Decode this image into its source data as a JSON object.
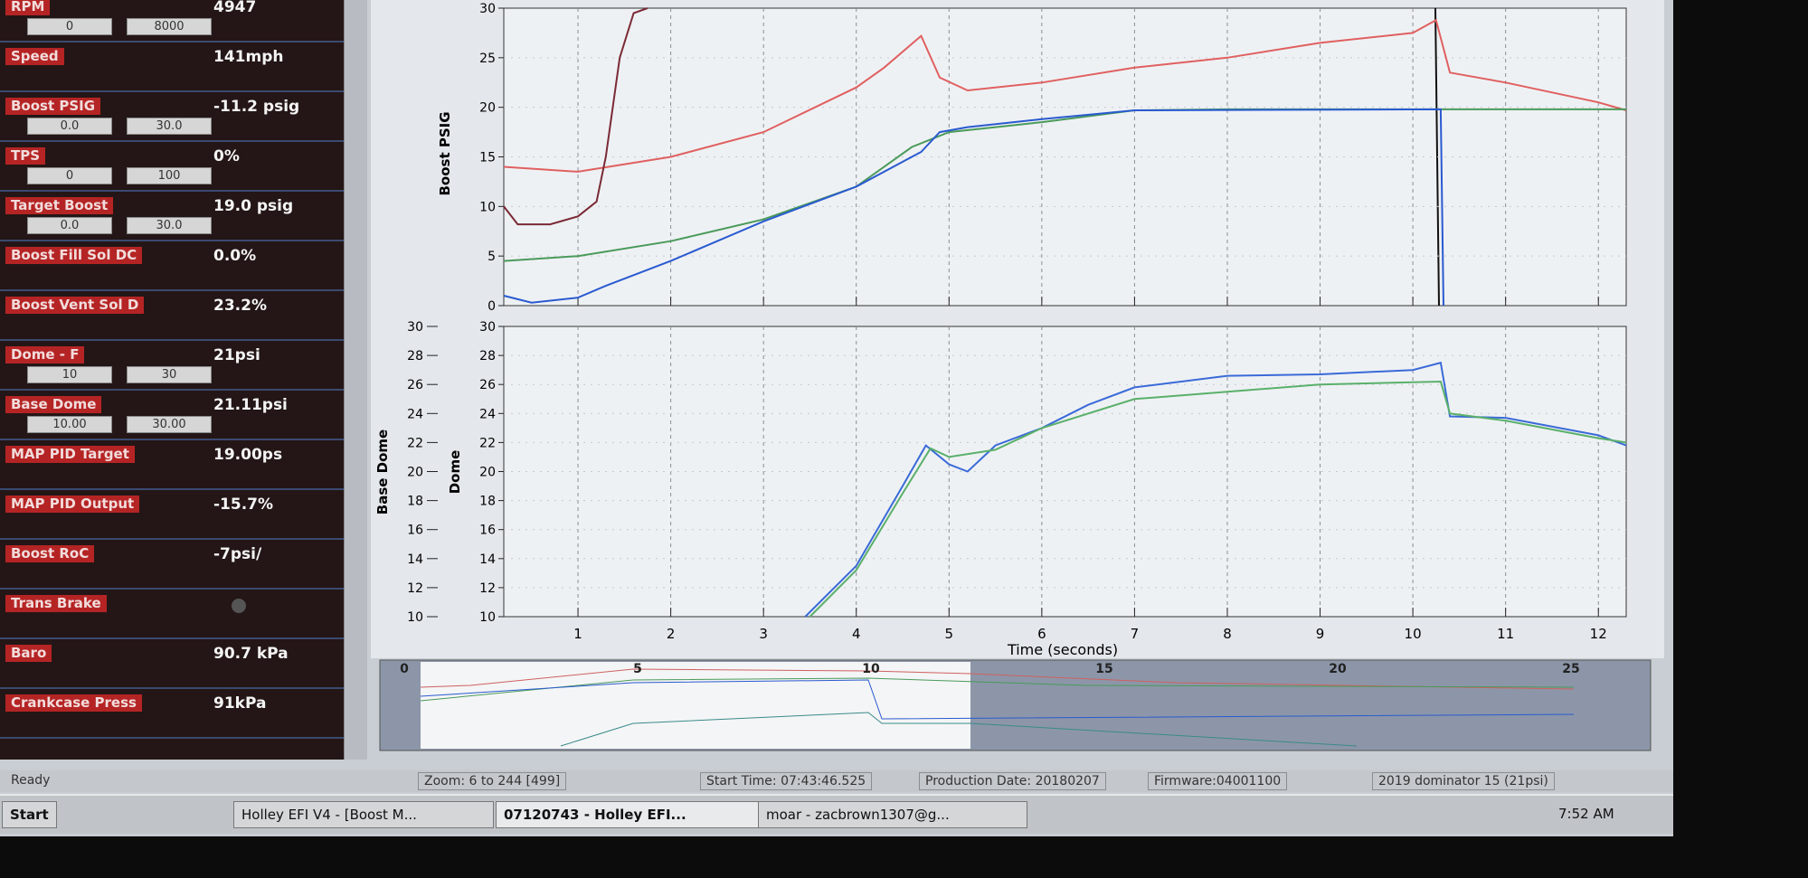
{
  "sidebar": {
    "items": [
      {
        "name": "RPM",
        "value": "4947",
        "range": [
          "0",
          "8000"
        ]
      },
      {
        "name": "Speed",
        "value": "141mph"
      },
      {
        "name": "Boost PSIG",
        "value": "-11.2 psig",
        "range": [
          "0.0",
          "30.0"
        ]
      },
      {
        "name": "TPS",
        "value": "0%",
        "range": [
          "0",
          "100"
        ]
      },
      {
        "name": "Target Boost",
        "value": "19.0 psig",
        "range": [
          "0.0",
          "30.0"
        ]
      },
      {
        "name": "Boost Fill Sol DC",
        "value": "0.0%"
      },
      {
        "name": "Boost Vent Sol D",
        "value": "23.2%"
      },
      {
        "name": "Dome - F",
        "value": "21psi",
        "range": [
          "10",
          "30"
        ]
      },
      {
        "name": "Base Dome",
        "value": "21.11psi",
        "range": [
          "10.00",
          "30.00"
        ]
      },
      {
        "name": "MAP PID Target",
        "value": "19.00ps"
      },
      {
        "name": "MAP PID Output",
        "value": "-15.7%"
      },
      {
        "name": "Boost RoC",
        "value": "-7psi/"
      },
      {
        "name": "Trans Brake"
      },
      {
        "name": "Baro",
        "value": "90.7 kPa"
      },
      {
        "name": "Crankcase Press",
        "value": "91kPa"
      }
    ]
  },
  "chart_data": [
    {
      "type": "line",
      "ylabel": "Boost PSIG",
      "xlim": [
        0.2,
        12.3
      ],
      "ylim": [
        0,
        30
      ],
      "yticks": [
        0,
        5,
        10,
        15,
        20,
        25,
        30
      ],
      "grid": true,
      "series": [
        {
          "color": "#e06060",
          "x": [
            0.2,
            1,
            2,
            3,
            4,
            4.3,
            4.7,
            4.9,
            5.2,
            6,
            7,
            8,
            9,
            10,
            10.25,
            10.4,
            11,
            12,
            12.3
          ],
          "values": [
            14,
            13.5,
            15,
            17.5,
            22,
            24,
            27.2,
            23,
            21.7,
            22.5,
            24,
            25,
            26.5,
            27.5,
            28.8,
            23.5,
            22.5,
            20.5,
            19.7
          ]
        },
        {
          "color": "#7a2a35",
          "x": [
            0.2,
            0.35,
            0.7,
            1,
            1.2,
            1.3,
            1.45,
            1.6,
            1.75
          ],
          "values": [
            10,
            8.2,
            8.2,
            9,
            10.5,
            15,
            25,
            29.5,
            30
          ]
        },
        {
          "color": "#4a9a5a",
          "x": [
            0.2,
            1,
            2,
            3,
            4,
            4.6,
            5,
            6,
            7,
            8,
            12.3
          ],
          "values": [
            4.5,
            5,
            6.5,
            8.7,
            12,
            16,
            17.5,
            18.5,
            19.7,
            19.8,
            19.8
          ]
        },
        {
          "color": "#2a5ad0",
          "x": [
            0.2,
            0.5,
            1,
            1.3,
            2,
            3,
            4,
            4.7,
            4.9,
            5.2,
            6,
            7,
            10.3,
            10.33
          ],
          "values": [
            1,
            0.3,
            0.8,
            2,
            4.5,
            8.5,
            12,
            15.5,
            17.5,
            18,
            18.8,
            19.7,
            19.8,
            0
          ]
        }
      ]
    },
    {
      "type": "line",
      "ylabel": "Dome",
      "y2label": "Base Dome",
      "xlabel": "Time (seconds)",
      "xlim": [
        0.2,
        12.3
      ],
      "ylim": [
        10,
        30
      ],
      "yticks": [
        10,
        12,
        14,
        16,
        18,
        20,
        22,
        24,
        26,
        28,
        30
      ],
      "y2lim": [
        10,
        30
      ],
      "y2ticks": [
        10,
        12,
        14,
        16,
        18,
        20,
        22,
        24,
        26,
        28,
        30
      ],
      "xticks": [
        1,
        2,
        3,
        4,
        5,
        6,
        7,
        8,
        9,
        10,
        11,
        12
      ],
      "grid": true,
      "series": [
        {
          "color": "#3a6ad8",
          "x": [
            3.45,
            4,
            4.5,
            4.75,
            5,
            5.2,
            5.5,
            6,
            6.5,
            7,
            8,
            9,
            10,
            10.3,
            10.4,
            11,
            12,
            12.3
          ],
          "values": [
            10,
            13.5,
            19,
            21.8,
            20.5,
            20,
            21.8,
            23,
            24.6,
            25.8,
            26.6,
            26.7,
            27,
            27.5,
            23.8,
            23.7,
            22.5,
            21.8
          ]
        },
        {
          "color": "#5ab06a",
          "axis": "y2",
          "x": [
            3.5,
            4,
            4.5,
            4.8,
            5,
            5.5,
            6,
            7,
            8,
            9,
            10.3,
            10.4,
            11,
            12,
            12.3
          ],
          "values": [
            10,
            13.2,
            18.5,
            21.6,
            21,
            21.5,
            23,
            25,
            25.5,
            26,
            26.2,
            24,
            23.5,
            22.3,
            22
          ]
        }
      ]
    }
  ],
  "overview": {
    "ticks": [
      0,
      5,
      10,
      15,
      20,
      25
    ]
  },
  "status_bar": [
    "Ready",
    "Zoom: 6 to 244 [499]",
    "Start Time: 07:43:46.525",
    "Production Date: 20180207",
    "Firmware:04001100",
    "2019 dominator 15 (21psi)"
  ],
  "taskbar": {
    "start": "Start",
    "windows": [
      "Holley EFI V4 - [Boost M...",
      "07120743 - Holley EFI...",
      "moar - zacbrown1307@g..."
    ],
    "clock": "7:52 AM"
  }
}
